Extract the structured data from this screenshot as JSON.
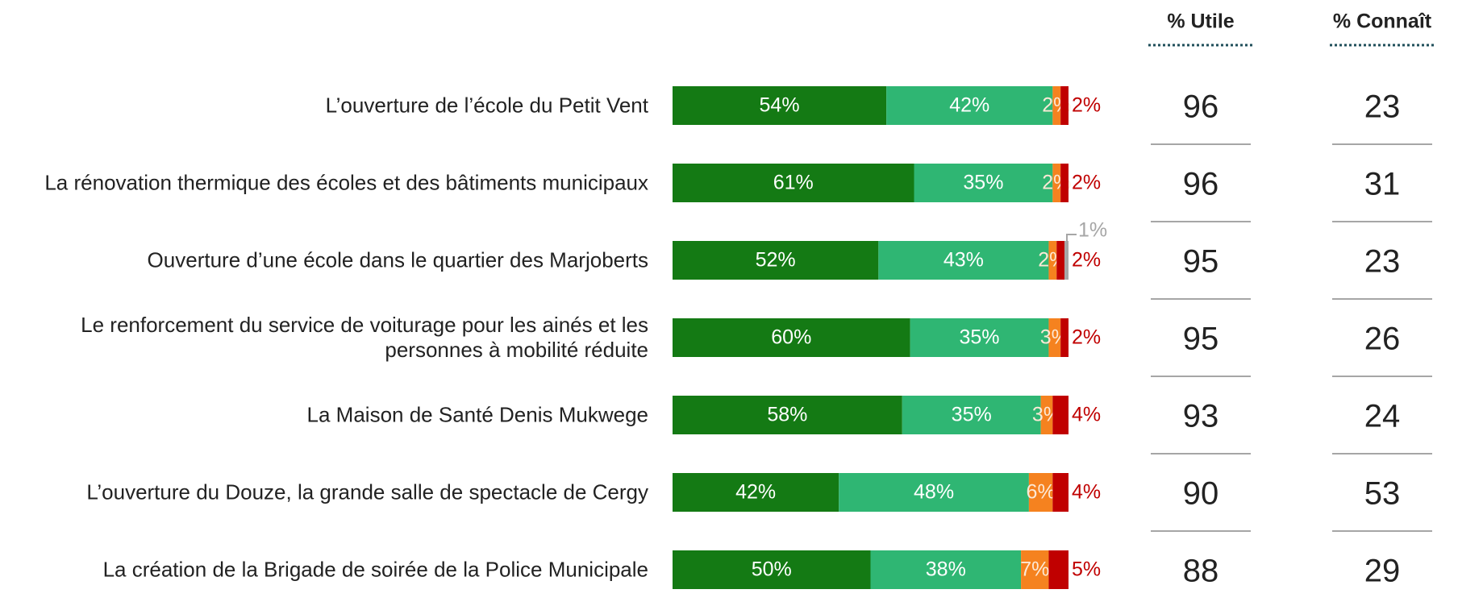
{
  "chart_data": {
    "type": "stacked-bar-horizontal",
    "categories": [
      "L’ouverture de l’école du Petit Vent",
      "La rénovation thermique des écoles et des bâtiments municipaux",
      "Ouverture d’une école dans le quartier des Marjoberts",
      "Le renforcement du service de voiturage pour les ainés et les personnes à mobilité réduite",
      "La Maison de Santé Denis Mukwege",
      "L’ouverture du Douze, la grande salle de spectacle de Cergy",
      "La création de la Brigade de soirée de la Police Municipale"
    ],
    "xlim": [
      0,
      100
    ],
    "series": [
      {
        "color": "#147a14",
        "values": [
          54,
          61,
          52,
          60,
          58,
          42,
          50
        ],
        "value_labels": [
          "54%",
          "61%",
          "52%",
          "60%",
          "58%",
          "42%",
          "50%"
        ]
      },
      {
        "color": "#2fb673",
        "values": [
          42,
          35,
          43,
          35,
          35,
          48,
          38
        ],
        "value_labels": [
          "42%",
          "35%",
          "43%",
          "35%",
          "35%",
          "48%",
          "38%"
        ]
      },
      {
        "color": "#f5821f",
        "values": [
          2,
          2,
          2,
          3,
          3,
          6,
          7
        ],
        "value_labels": [
          "2%",
          "2%",
          "2%",
          "3%",
          "3%",
          "6%",
          "7%"
        ]
      },
      {
        "color": "#c00000",
        "values": [
          2,
          2,
          2,
          2,
          4,
          4,
          5
        ],
        "value_labels": [
          "2%",
          "2%",
          "2%",
          "2%",
          "4%",
          "4%",
          "5%"
        ]
      },
      {
        "color": "#a6a6a6",
        "values": [
          null,
          null,
          1,
          null,
          null,
          null,
          null
        ],
        "value_labels": [
          null,
          null,
          "1%",
          null,
          null,
          null,
          null
        ]
      }
    ],
    "columns": [
      {
        "header": "% Utile",
        "values": [
          96,
          96,
          95,
          95,
          93,
          90,
          88
        ]
      },
      {
        "header": "% Connaît",
        "values": [
          23,
          31,
          23,
          26,
          24,
          53,
          29
        ]
      }
    ]
  }
}
